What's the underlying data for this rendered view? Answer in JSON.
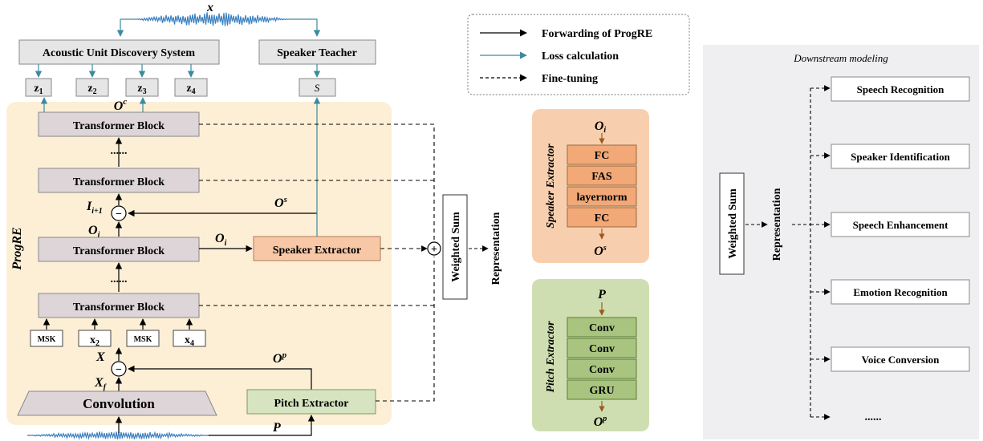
{
  "input": {
    "top_signal": "x",
    "bottom_signal_label": "P"
  },
  "top": {
    "audisc": "Acoustic Unit Discovery System",
    "teacher": "Speaker Teacher",
    "targets": [
      "z",
      "z",
      "z",
      "z"
    ],
    "target_subs": [
      "1",
      "2",
      "3",
      "4"
    ],
    "s_label": "S"
  },
  "legend": {
    "items": [
      "Forwarding of ProgRE",
      "Loss calculation",
      "Fine-tuning"
    ],
    "colors": {
      "forward": "#000000",
      "loss": "#3a8aa0",
      "finetune": "#000000"
    }
  },
  "progre": {
    "title": "ProgRE",
    "transformer": "Transformer Block",
    "dots": "......",
    "o_c": "O",
    "o_c_sup": "c",
    "i_label": "I",
    "i_sub": "i+1",
    "o_i": "O",
    "o_i_sub": "i",
    "o_s": "O",
    "o_s_sup": "s",
    "speaker_extractor": "Speaker Extractor",
    "inputs": [
      "MSK",
      "x",
      "MSK",
      "x"
    ],
    "input_subs": [
      "",
      "2",
      "",
      "4"
    ],
    "x_label": "X",
    "xf_label": "X",
    "xf_sub": "f",
    "o_p": "O",
    "o_p_sup": "p",
    "convolution": "Convolution",
    "pitch_extractor": "Pitch Extractor",
    "minus": "−"
  },
  "fusion": {
    "plus": "+",
    "weighted_sum": "Weighted Sum",
    "representation": "Representation"
  },
  "speaker_panel": {
    "title": "Speaker Extractor",
    "in_label": "O",
    "in_sub": "i",
    "layers": [
      "FC",
      "FAS",
      "layernorm",
      "FC"
    ],
    "out_label": "O",
    "out_sup": "s",
    "colors": {
      "panel": "#f8cfae",
      "layer": "#f2a877"
    }
  },
  "pitch_panel": {
    "title": "Pitch Extractor",
    "in_label": "P",
    "layers": [
      "Conv",
      "Conv",
      "Conv",
      "GRU"
    ],
    "out_label": "O",
    "out_sup": "p",
    "colors": {
      "panel": "#cfdeb0",
      "layer": "#a9c47f"
    }
  },
  "downstream": {
    "title": "Downstream modeling",
    "weighted_sum": "Weighted Sum",
    "representation": "Representation",
    "tasks": [
      "Speech Recognition",
      "Speaker Identification",
      "Speech Enhancement",
      "Emotion Recognition",
      "Voice Conversion"
    ],
    "more": "......",
    "colors": {
      "panel": "#efeff1"
    }
  },
  "colors": {
    "progre_bg": "#fcefd6",
    "gray_block": "#ddd5d8",
    "box_gray": "#e6e6e6",
    "teal": "#3a8aa0",
    "signal": "#3a7fc0"
  }
}
